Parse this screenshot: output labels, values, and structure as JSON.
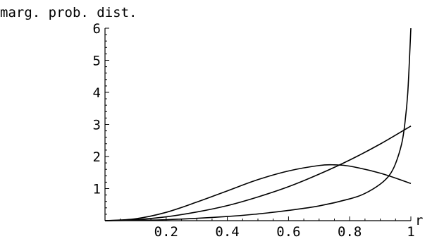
{
  "chart_data": {
    "type": "line",
    "title": "",
    "ylabel": "marg. prob. dist.",
    "xlabel": "r",
    "xlim": [
      0,
      1
    ],
    "ylim": [
      0,
      6
    ],
    "x_ticks": [
      0.2,
      0.4,
      0.6,
      0.8,
      1
    ],
    "x_tick_labels": [
      "0.2",
      "0.4",
      "0.6",
      "0.8",
      "1"
    ],
    "y_ticks": [
      1,
      2,
      3,
      4,
      5,
      6
    ],
    "y_tick_labels": [
      "1",
      "2",
      "3",
      "4",
      "5",
      "6"
    ],
    "grid": false,
    "legend": "none",
    "series": [
      {
        "x": [
          0,
          0.1,
          0.2,
          0.3,
          0.4,
          0.5,
          0.6,
          0.7,
          0.75,
          0.8,
          0.9,
          1.0
        ],
        "y": [
          0,
          0.06,
          0.26,
          0.58,
          0.93,
          1.28,
          1.55,
          1.72,
          1.74,
          1.7,
          1.48,
          1.16
        ]
      },
      {
        "x": [
          0,
          0.1,
          0.2,
          0.3,
          0.4,
          0.5,
          0.6,
          0.7,
          0.8,
          0.9,
          1.0
        ],
        "y": [
          0,
          0.03,
          0.12,
          0.27,
          0.47,
          0.74,
          1.06,
          1.45,
          1.89,
          2.39,
          2.95
        ]
      },
      {
        "x": [
          0,
          0.2,
          0.4,
          0.5,
          0.6,
          0.7,
          0.8,
          0.85,
          0.9,
          0.93,
          0.95,
          0.97,
          0.98,
          0.99,
          1.0
        ],
        "y": [
          0,
          0.03,
          0.13,
          0.21,
          0.32,
          0.46,
          0.68,
          0.85,
          1.14,
          1.42,
          1.78,
          2.4,
          3.0,
          4.0,
          6.0
        ]
      }
    ]
  }
}
